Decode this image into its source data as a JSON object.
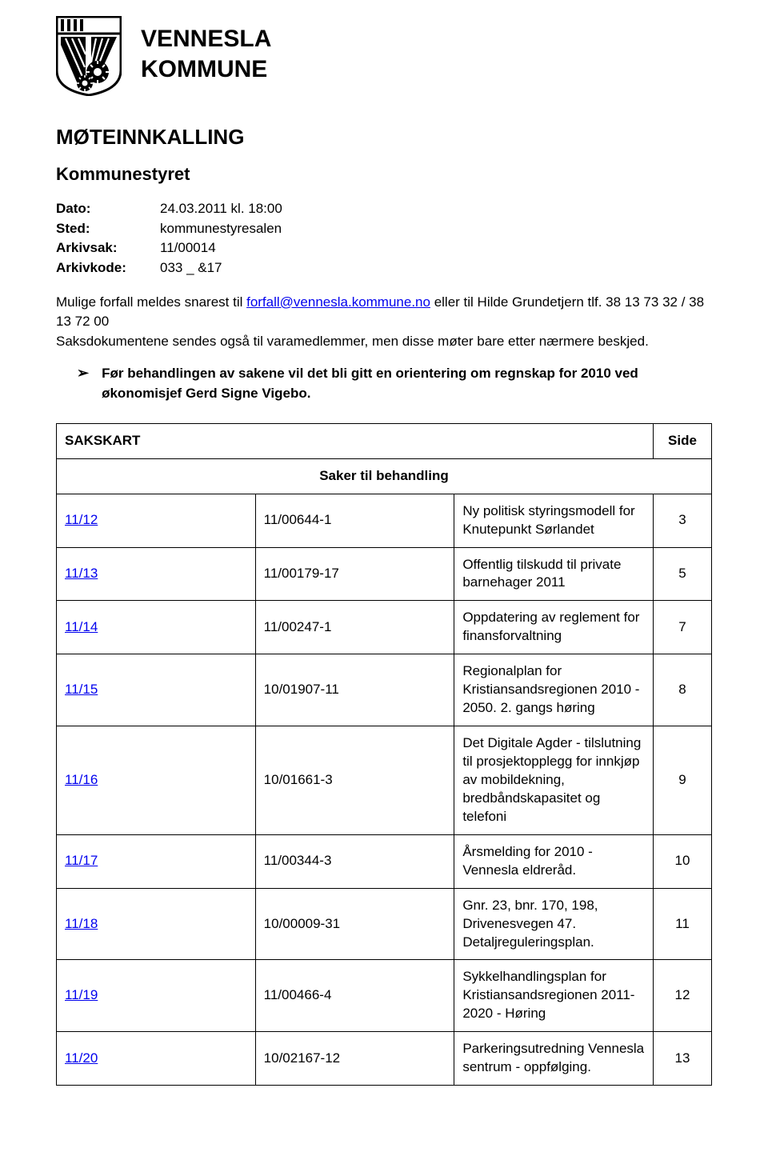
{
  "org": {
    "line1": "VENNESLA",
    "line2": "KOMMUNE"
  },
  "doc_title": "MØTEINNKALLING",
  "subheading": "Kommunestyret",
  "meta": {
    "dato_label": "Dato:",
    "dato_value": "24.03.2011 kl. 18:00",
    "sted_label": "Sted:",
    "sted_value": "kommunestyresalen",
    "arkivsak_label": "Arkivsak:",
    "arkivsak_value": "11/00014",
    "arkivkode_label": "Arkivkode:",
    "arkivkode_value": "033 _ &17"
  },
  "body": {
    "p1a": "Mulige forfall meldes snarest til ",
    "email": "forfall@vennesla.kommune.no",
    "p1b": " eller til Hilde Grundetjern tlf. 38 13 73 32 / 38 13 72 00",
    "p2": "Saksdokumentene sendes også til varamedlemmer, men disse møter bare etter nærmere beskjed.",
    "bullet": "Før behandlingen av sakene vil det bli gitt en orientering om regnskap for 2010 ved økonomisjef Gerd Signe Vigebo."
  },
  "table": {
    "head_left": "SAKSKART",
    "head_right": "Side",
    "section_title": "Saker til behandling",
    "rows": [
      {
        "link": "11/12",
        "ref": "11/00644-1",
        "desc": "Ny politisk styringsmodell for Knutepunkt Sørlandet",
        "page": "3"
      },
      {
        "link": "11/13",
        "ref": "11/00179-17",
        "desc": "Offentlig tilskudd til private barnehager 2011",
        "page": "5"
      },
      {
        "link": "11/14",
        "ref": "11/00247-1",
        "desc": "Oppdatering av reglement for finansforvaltning",
        "page": "7"
      },
      {
        "link": "11/15",
        "ref": "10/01907-11",
        "desc": "Regionalplan for Kristiansandsregionen 2010 - 2050. 2. gangs høring",
        "page": "8"
      },
      {
        "link": "11/16",
        "ref": "10/01661-3",
        "desc": "Det Digitale Agder - tilslutning til prosjektopplegg for innkjøp av mobildekning, bredbåndskapasitet og telefoni",
        "page": "9"
      },
      {
        "link": "11/17",
        "ref": "11/00344-3",
        "desc": "Årsmelding for 2010 - Vennesla eldreråd.",
        "page": "10"
      },
      {
        "link": "11/18",
        "ref": "10/00009-31",
        "desc": "Gnr. 23, bnr. 170, 198, Drivenesvegen 47. Detaljreguleringsplan.",
        "page": "11"
      },
      {
        "link": "11/19",
        "ref": "11/00466-4",
        "desc": "Sykkelhandlingsplan for Kristiansandsregionen 2011-2020 - Høring",
        "page": "12"
      },
      {
        "link": "11/20",
        "ref": "10/02167-12",
        "desc": "Parkeringsutredning Vennesla sentrum - oppfølging.",
        "page": "13"
      }
    ]
  },
  "colors": {
    "text": "#000000",
    "link": "#0000ee",
    "border": "#000000",
    "background": "#ffffff"
  }
}
